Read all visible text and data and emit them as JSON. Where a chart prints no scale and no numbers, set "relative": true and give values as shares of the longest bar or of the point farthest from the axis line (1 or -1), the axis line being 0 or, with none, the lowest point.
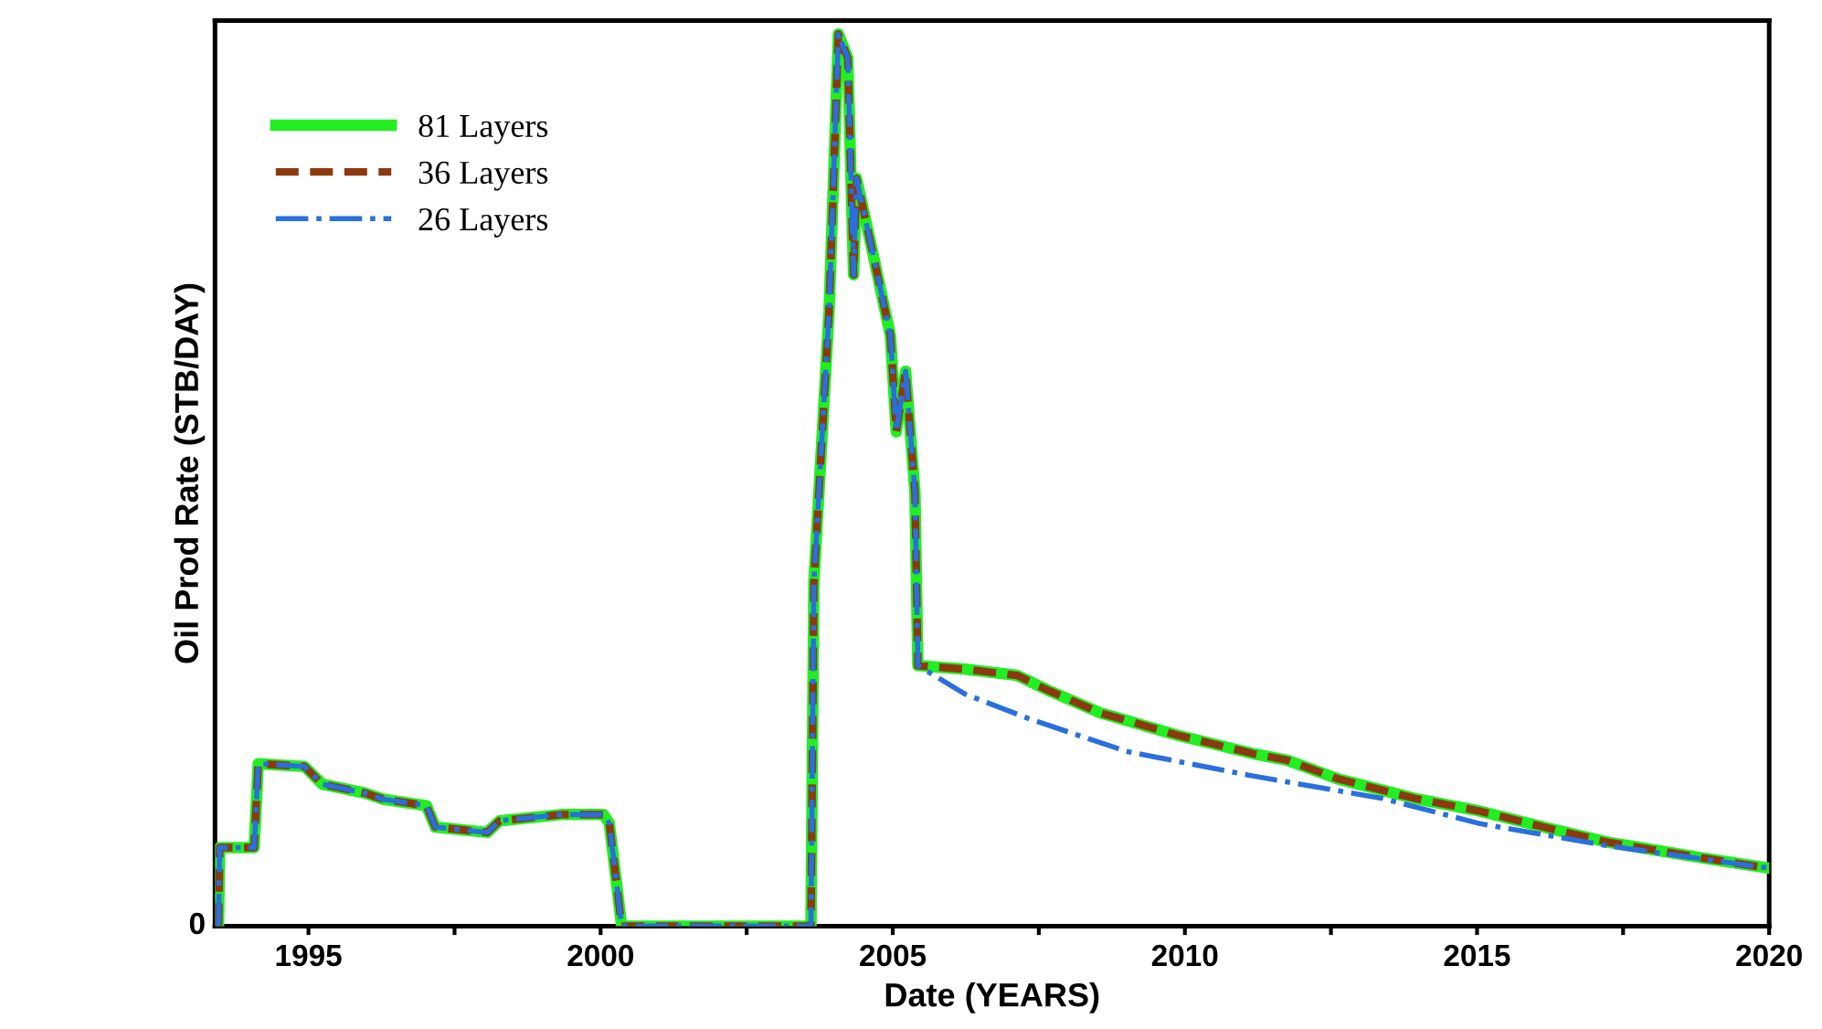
{
  "chart_data": {
    "type": "line",
    "xlabel": "Date (YEARS)",
    "ylabel": "Oil Prod Rate (STB/DAY)",
    "relative": true,
    "legend": "top left",
    "grid": false,
    "xlim": [
      1993.4,
      2020
    ],
    "xticks": [
      {
        "value": 1995,
        "label": "1995"
      },
      {
        "value": 1997.5,
        "label": null
      },
      {
        "value": 2000,
        "label": "2000"
      },
      {
        "value": 2002.5,
        "label": null
      },
      {
        "value": 2005,
        "label": "2005"
      },
      {
        "value": 2007.5,
        "label": null
      },
      {
        "value": 2010,
        "label": "2010"
      },
      {
        "value": 2012.5,
        "label": null
      },
      {
        "value": 2015,
        "label": "2015"
      },
      {
        "value": 2017.5,
        "label": null
      },
      {
        "value": 2020,
        "label": "2020"
      }
    ],
    "annotations": [
      "0"
    ],
    "series": [
      {
        "name": "81 Layers",
        "color": "#22ee22",
        "line_style": "solid",
        "x": [
          1993.46,
          1993.48,
          1994.07,
          1994.14,
          1994.93,
          1995.24,
          1995.97,
          1996.29,
          1997.02,
          1997.17,
          1998.06,
          1998.27,
          1999.32,
          2000.05,
          2000.15,
          2000.36,
          2003.6,
          2003.65,
          2003.91,
          2004.07,
          2004.23,
          2004.33,
          2004.38,
          2004.65,
          2004.96,
          2005.06,
          2005.22,
          2005.38,
          2005.43,
          2006.24,
          2007.13,
          2007.67,
          2008.55,
          2009.87,
          2011.19,
          2011.75,
          2012.62,
          2013.94,
          2015.04,
          2016.14,
          2017.24,
          2018.89,
          2019.99
        ],
        "values": [
          0,
          0.088,
          0.088,
          0.182,
          0.179,
          0.159,
          0.149,
          0.142,
          0.135,
          0.111,
          0.105,
          0.118,
          0.125,
          0.125,
          0.115,
          0,
          0,
          0.385,
          0.689,
          1,
          0.973,
          0.73,
          0.838,
          0.757,
          0.662,
          0.554,
          0.622,
          0.486,
          0.292,
          0.288,
          0.281,
          0.264,
          0.239,
          0.214,
          0.193,
          0.186,
          0.165,
          0.143,
          0.129,
          0.111,
          0.094,
          0.076,
          0.065
        ]
      },
      {
        "name": "36 Layers",
        "color": "#8b3a0f",
        "line_style": "dashed",
        "x": [
          1993.46,
          1993.48,
          1994.07,
          1994.14,
          1994.93,
          1995.24,
          1995.97,
          1996.29,
          1997.02,
          1997.17,
          1998.06,
          1998.27,
          1999.32,
          2000.05,
          2000.15,
          2000.36,
          2003.6,
          2003.65,
          2003.91,
          2004.07,
          2004.23,
          2004.33,
          2004.38,
          2004.65,
          2004.96,
          2005.06,
          2005.22,
          2005.38,
          2005.43,
          2006.24,
          2007.13,
          2007.67,
          2008.55,
          2009.87,
          2011.19,
          2011.75,
          2012.62,
          2013.94,
          2015.04,
          2016.14,
          2017.24,
          2018.89,
          2019.99
        ],
        "values": [
          0,
          0.088,
          0.088,
          0.182,
          0.179,
          0.159,
          0.149,
          0.142,
          0.135,
          0.111,
          0.105,
          0.118,
          0.125,
          0.125,
          0.115,
          0,
          0,
          0.385,
          0.689,
          1,
          0.973,
          0.73,
          0.838,
          0.757,
          0.662,
          0.554,
          0.622,
          0.486,
          0.292,
          0.288,
          0.281,
          0.264,
          0.239,
          0.214,
          0.193,
          0.186,
          0.165,
          0.143,
          0.129,
          0.111,
          0.094,
          0.076,
          0.065
        ]
      },
      {
        "name": "26 Layers",
        "color": "#2a6fdd",
        "line_style": "dashdot",
        "x": [
          1993.46,
          1993.48,
          1994.07,
          1994.14,
          1994.93,
          1995.24,
          1995.97,
          1996.29,
          1997.02,
          1997.17,
          1998.06,
          1998.27,
          1999.32,
          2000.05,
          2000.15,
          2000.36,
          2003.6,
          2003.65,
          2003.91,
          2004.07,
          2004.23,
          2004.33,
          2004.38,
          2004.65,
          2004.96,
          2005.06,
          2005.22,
          2005.38,
          2005.43,
          2006.24,
          2007.35,
          2008.99,
          2011.19,
          2013.39,
          2015.04,
          2017.24,
          2019.99
        ],
        "values": [
          0,
          0.088,
          0.088,
          0.182,
          0.179,
          0.159,
          0.149,
          0.142,
          0.135,
          0.111,
          0.105,
          0.118,
          0.125,
          0.125,
          0.115,
          0,
          0,
          0.385,
          0.689,
          1,
          0.973,
          0.73,
          0.838,
          0.757,
          0.662,
          0.554,
          0.622,
          0.486,
          0.292,
          0.26,
          0.232,
          0.196,
          0.168,
          0.143,
          0.115,
          0.09,
          0.065
        ]
      }
    ]
  }
}
